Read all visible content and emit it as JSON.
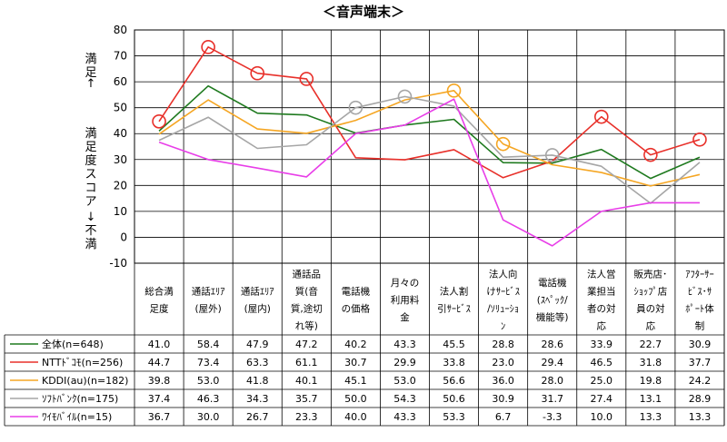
{
  "title": "＜音声端末＞",
  "side_label": {
    "top": "満足",
    "top_arrow": "↑",
    "middle": "満足度スコア",
    "bottom_arrow": "↓",
    "bottom": "不満"
  },
  "chart_data": {
    "type": "line",
    "title": "＜音声端末＞",
    "ylim": [
      -10,
      80
    ],
    "yticks": [
      80,
      70,
      60,
      50,
      40,
      30,
      20,
      10,
      0,
      -10
    ],
    "grid": true,
    "categories": [
      [
        "総合満",
        "足度"
      ],
      [
        "通話ｴﾘｱ",
        "(屋外)"
      ],
      [
        "通話ｴﾘｱ",
        "(屋内)"
      ],
      [
        "通話品",
        "質(音",
        "質,途切",
        "れ等)"
      ],
      [
        "電話機",
        "の価格"
      ],
      [
        "月々の",
        "利用料",
        "金"
      ],
      [
        "法人割",
        "引ｻｰﾋﾞｽ"
      ],
      [
        "法人向",
        "けｻｰﾋﾞｽ",
        "/ｿﾘｭｰｼｮ",
        "ﾝ"
      ],
      [
        "電話機",
        "(ｽﾍﾟｯｸ/",
        "機能等)"
      ],
      [
        "法人営",
        "業担当",
        "者の対",
        "応"
      ],
      [
        "販売店･",
        "ｼｮｯﾌﾟ店",
        "員の対",
        "応"
      ],
      [
        "ｱﾌﾀｰｻｰ",
        "ﾋﾞｽ･ｻ",
        "ﾎﾟｰﾄ体",
        "制"
      ]
    ],
    "series": [
      {
        "name": "全体(n=648)",
        "color": "#1f7a1f",
        "markers": "none",
        "values": [
          41.0,
          58.4,
          47.9,
          47.2,
          40.2,
          43.3,
          45.5,
          28.8,
          28.6,
          33.9,
          22.7,
          30.9
        ],
        "labels": [
          "41.0",
          "58.4",
          "47.9",
          "47.2",
          "40.2",
          "43.3",
          "45.5",
          "28.8",
          "28.6",
          "33.9",
          "22.7",
          "30.9"
        ]
      },
      {
        "name": "NTTﾄﾞｺﾓ(n=256)",
        "color": "#e8302a",
        "markers": [
          0,
          1,
          2,
          3,
          9,
          10,
          11
        ],
        "values": [
          44.7,
          73.4,
          63.3,
          61.1,
          30.7,
          29.9,
          33.8,
          23.0,
          29.4,
          46.5,
          31.8,
          37.7
        ],
        "labels": [
          "44.7",
          "73.4",
          "63.3",
          "61.1",
          "30.7",
          "29.9",
          "33.8",
          "23.0",
          "29.4",
          "46.5",
          "31.8",
          "37.7"
        ]
      },
      {
        "name": "KDDI(au)(n=182)",
        "color": "#f5a623",
        "markers": [
          6,
          7
        ],
        "values": [
          39.8,
          53.0,
          41.8,
          40.1,
          45.1,
          53.0,
          56.6,
          36.0,
          28.0,
          25.0,
          19.8,
          24.2
        ],
        "labels": [
          "39.8",
          "53.0",
          "41.8",
          "40.1",
          "45.1",
          "53.0",
          "56.6",
          "36.0",
          "28.0",
          "25.0",
          "19.8",
          "24.2"
        ]
      },
      {
        "name": "ｿﾌﾄﾊﾞﾝｸ(n=175)",
        "color": "#a6a6a6",
        "markers": [
          4,
          5,
          8
        ],
        "values": [
          37.4,
          46.3,
          34.3,
          35.7,
          50.0,
          54.3,
          50.6,
          30.9,
          31.7,
          27.4,
          13.1,
          28.9
        ],
        "labels": [
          "37.4",
          "46.3",
          "34.3",
          "35.7",
          "50.0",
          "54.3",
          "50.6",
          "30.9",
          "31.7",
          "27.4",
          "13.1",
          "28.9"
        ]
      },
      {
        "name": "ﾜｲﾓﾊﾞｲﾙ(n=15)",
        "color": "#e83ee8",
        "markers": "none",
        "values": [
          36.7,
          30.0,
          26.7,
          23.3,
          40.0,
          43.3,
          53.3,
          6.7,
          -3.3,
          10.0,
          13.3,
          13.3
        ],
        "labels": [
          "36.7",
          "30.0",
          "26.7",
          "23.3",
          "40.0",
          "43.3",
          "53.3",
          "6.7",
          "-3.3",
          "10.0",
          "13.3",
          "13.3"
        ]
      }
    ]
  }
}
